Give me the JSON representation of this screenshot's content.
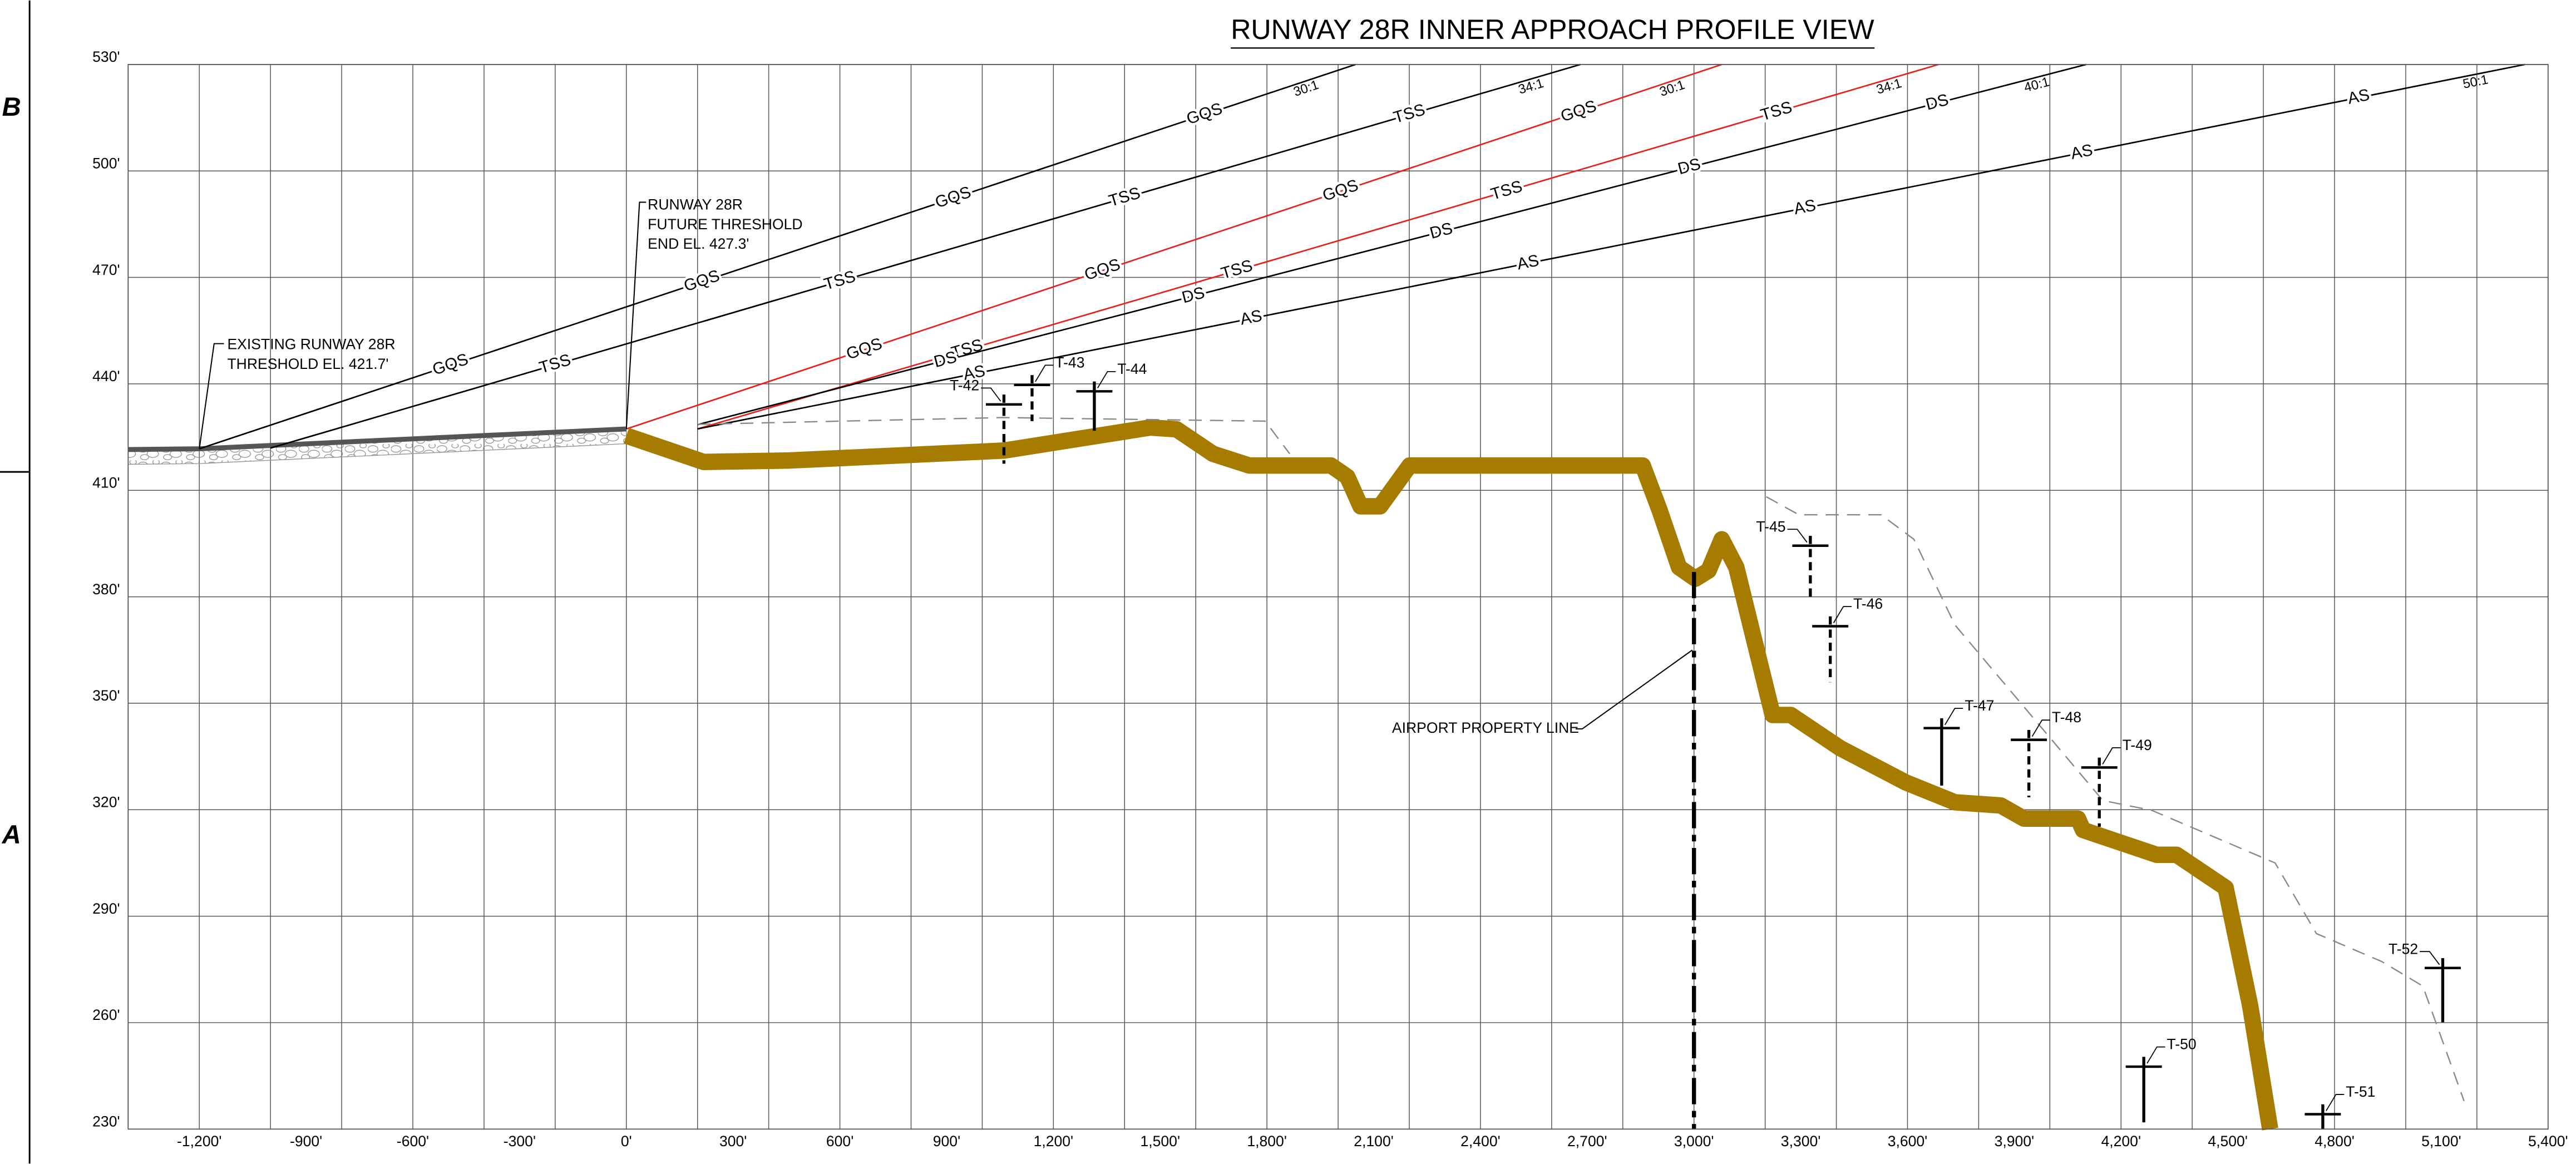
{
  "chart_data": {
    "type": "line",
    "title": "RUNWAY 28R INNER APPROACH PROFILE VIEW",
    "zones": [
      "B",
      "A"
    ],
    "xlim": [
      -1400,
      5400
    ],
    "ylim": [
      230,
      530
    ],
    "xticks": [
      {
        "value": -1200,
        "label": "-1,200'"
      },
      {
        "value": -900,
        "label": "-900'"
      },
      {
        "value": -600,
        "label": "-600'"
      },
      {
        "value": -300,
        "label": "-300'"
      },
      {
        "value": 0,
        "label": "0'"
      },
      {
        "value": 300,
        "label": "300'"
      },
      {
        "value": 600,
        "label": "600'"
      },
      {
        "value": 900,
        "label": "900'"
      },
      {
        "value": 1200,
        "label": "1,200'"
      },
      {
        "value": 1500,
        "label": "1,500'"
      },
      {
        "value": 1800,
        "label": "1,800'"
      },
      {
        "value": 2100,
        "label": "2,100'"
      },
      {
        "value": 2400,
        "label": "2,400'"
      },
      {
        "value": 2700,
        "label": "2,700'"
      },
      {
        "value": 3000,
        "label": "3,000'"
      },
      {
        "value": 3300,
        "label": "3,300'"
      },
      {
        "value": 3600,
        "label": "3,600'"
      },
      {
        "value": 3900,
        "label": "3,900'"
      },
      {
        "value": 4200,
        "label": "4,200'"
      },
      {
        "value": 4500,
        "label": "4,500'"
      },
      {
        "value": 4800,
        "label": "4,800'"
      },
      {
        "value": 5100,
        "label": "5,100'"
      },
      {
        "value": 5400,
        "label": "5,400'"
      }
    ],
    "xgrid": [
      -1400,
      -1200,
      -1000,
      -800,
      -600,
      -400,
      -200,
      0,
      200,
      400,
      600,
      800,
      1000,
      1200,
      1400,
      1600,
      1800,
      2000,
      2200,
      2400,
      2600,
      2800,
      3000,
      3200,
      3400,
      3600,
      3800,
      4000,
      4200,
      4400,
      4600,
      4800,
      5000,
      5200,
      5400
    ],
    "yticks": [
      {
        "value": 230,
        "label": "230'"
      },
      {
        "value": 260,
        "label": "260'"
      },
      {
        "value": 290,
        "label": "290'"
      },
      {
        "value": 320,
        "label": "320'"
      },
      {
        "value": 350,
        "label": "350'"
      },
      {
        "value": 380,
        "label": "380'"
      },
      {
        "value": 410,
        "label": "410'"
      },
      {
        "value": 440,
        "label": "440'"
      },
      {
        "value": 470,
        "label": "470'"
      },
      {
        "value": 500,
        "label": "500'"
      },
      {
        "value": 530,
        "label": "530'"
      }
    ],
    "grid": true,
    "runway": {
      "x": [
        -1400,
        -1200,
        0
      ],
      "values": [
        421.5,
        421.7,
        427.3
      ]
    },
    "series": [
      {
        "color": "#a67c00",
        "x": [
          0,
          217,
          457,
          1061,
          1472,
          1546,
          1648,
          1750,
          1980,
          2026,
          2063,
          2118,
          2201,
          2856,
          2903,
          2958,
          3004,
          3041,
          3078,
          3119,
          3221,
          3272,
          3410,
          3595,
          3733,
          3862,
          3927,
          4079,
          4093,
          4300,
          4356,
          4494,
          4563,
          4619
        ],
        "values": [
          425.4,
          418,
          418.4,
          421.2,
          427.7,
          427.2,
          420.3,
          417,
          417,
          413.8,
          405.5,
          405.5,
          417,
          417,
          404.5,
          388.3,
          385.1,
          387.4,
          396.2,
          388.3,
          346.7,
          346.7,
          337.4,
          327.7,
          322.1,
          321.2,
          317.5,
          317.5,
          314.3,
          307.3,
          307.3,
          298,
          264.7,
          230
        ]
      },
      {
        "color": "#888888",
        "x": [
          200,
          1057,
          1795,
          1864
        ],
        "values": [
          428.6,
          430.5,
          429.5,
          420.3
        ]
      },
      {
        "color": "#888888",
        "x": [
          3203,
          3295,
          3526,
          3618,
          3733,
          4149,
          4287,
          4633,
          4749,
          4933,
          5048,
          5164
        ],
        "values": [
          408.2,
          403.1,
          403.1,
          396.2,
          372.1,
          322.6,
          319.8,
          305,
          285.1,
          277.2,
          270.3,
          237.9
        ]
      }
    ],
    "surfaces": [
      {
        "name": "GQS",
        "slope": "30:1",
        "color": "#000000",
        "x": [
          -1200,
          2049
        ],
        "values": [
          421.7,
          530
        ]
      },
      {
        "name": "TSS",
        "slope": "34:1",
        "color": "#000000",
        "x": [
          -1000,
          2681
        ],
        "values": [
          421.9,
          530
        ]
      },
      {
        "name": "GQS",
        "slope": "30:1",
        "color": "#e8201a",
        "x": [
          0,
          3078
        ],
        "values": [
          427.3,
          530
        ]
      },
      {
        "name": "TSS",
        "slope": "34:1",
        "color": "#e8201a",
        "x": [
          200,
          3687
        ],
        "values": [
          427.3,
          530
        ]
      },
      {
        "name": "DS",
        "slope": "40:1",
        "color": "#000000",
        "x": [
          200,
          4102
        ],
        "values": [
          428.5,
          530
        ]
      },
      {
        "name": "AS",
        "slope": "50:1",
        "color": "#000000",
        "x": [
          200,
          5335
        ],
        "values": [
          427.3,
          530
        ]
      }
    ],
    "trees": [
      {
        "name": "T-42",
        "x": 1061,
        "top": 434.2,
        "base": 417.5
      },
      {
        "name": "T-43",
        "x": 1140,
        "top": 439.7,
        "base": 429.5
      },
      {
        "name": "T-44",
        "x": 1315,
        "top": 437.9,
        "base": 426.8
      },
      {
        "name": "T-45",
        "x": 3327,
        "top": 394.4,
        "base": 379.1
      },
      {
        "name": "T-46",
        "x": 3383,
        "top": 371.7,
        "base": 355.9
      },
      {
        "name": "T-47",
        "x": 3696,
        "top": 343,
        "base": 326.8
      },
      {
        "name": "T-48",
        "x": 3941,
        "top": 339.7,
        "base": 323.5
      },
      {
        "name": "T-49",
        "x": 4139,
        "top": 331.9,
        "base": 315.2
      },
      {
        "name": "T-50",
        "x": 4264,
        "top": 247.6,
        "base": 231.9
      },
      {
        "name": "T-51",
        "x": 4767,
        "top": 234.2,
        "base": 230
      },
      {
        "name": "T-52",
        "x": 5104,
        "top": 275.4,
        "base": 260.1
      }
    ],
    "annotations": [
      {
        "text": [
          "EXISTING RUNWAY 28R",
          "THRESHOLD EL. 421.7'"
        ],
        "at": [
          -1200,
          421.7
        ]
      },
      {
        "text": [
          "RUNWAY 28R",
          "FUTURE THRESHOLD",
          "END EL. 427.3'"
        ],
        "at": [
          0,
          427.3
        ]
      },
      {
        "text": [
          "AIRPORT PROPERTY LINE"
        ],
        "at": [
          3000,
          387
        ]
      }
    ]
  }
}
